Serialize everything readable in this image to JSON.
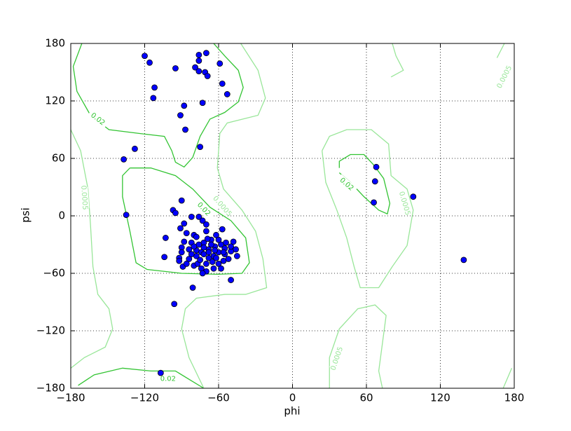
{
  "chart_data": {
    "type": "scatter",
    "xlabel": "phi",
    "ylabel": "psi",
    "xlim": [
      -180,
      180
    ],
    "ylim": [
      -180,
      180
    ],
    "xticks": [
      {
        "value": -180,
        "label": "−180"
      },
      {
        "value": -120,
        "label": "−120"
      },
      {
        "value": -60,
        "label": "−60"
      },
      0,
      60,
      120,
      180
    ],
    "yticks": [
      {
        "value": -180,
        "label": "−180"
      },
      {
        "value": -120,
        "label": "−120"
      },
      {
        "value": -60,
        "label": "−60"
      },
      0,
      60,
      120,
      180
    ],
    "grid": true,
    "series": [
      {
        "color": "#0000ff",
        "x": [
          -120,
          -116,
          -112,
          -113,
          -95,
          -76,
          -70,
          -76,
          -79,
          -76,
          -71,
          -69,
          -59,
          -57,
          -53,
          -73,
          -88,
          -91,
          -87,
          -75,
          -128,
          -137,
          -135,
          -97,
          -95,
          -90,
          68,
          67,
          66,
          98,
          139,
          -103,
          -104,
          -92,
          -92,
          -89,
          -81,
          -96,
          -107,
          -50,
          -82,
          -76,
          -73,
          -70,
          -88,
          -91,
          -86,
          -80,
          -78,
          -70,
          -57,
          -62,
          -66,
          -72,
          -76,
          -82,
          -88,
          -90,
          -84,
          -78,
          -74,
          -68,
          -63,
          -58,
          -54,
          -48,
          -46,
          -50,
          -55,
          -60,
          -64,
          -68,
          -72,
          -78,
          -84,
          -90,
          -86,
          -80,
          -74,
          -70,
          -65,
          -60,
          -56,
          -52,
          -45,
          -58,
          -64,
          -70,
          -77,
          -66,
          -60,
          -55,
          -62,
          -72,
          -80,
          -68,
          -56,
          -50,
          -75,
          -82,
          -63,
          -69,
          -73
        ],
        "y": [
          167,
          160,
          134,
          123,
          154,
          168,
          170,
          162,
          155,
          151,
          150,
          146,
          159,
          138,
          127,
          118,
          115,
          105,
          90,
          72,
          70,
          59,
          1,
          6,
          3,
          16,
          51,
          36,
          14,
          20,
          -46,
          -23,
          -43,
          -44,
          -47,
          -53,
          -75,
          -92,
          -164,
          -67,
          -1,
          -1,
          -5,
          -9,
          -8,
          -13,
          -18,
          -20,
          -22,
          -16,
          -14,
          -20,
          -25,
          -28,
          -30,
          -28,
          -27,
          -33,
          -35,
          -36,
          -38,
          -35,
          -32,
          -30,
          -28,
          -27,
          -35,
          -37,
          -40,
          -38,
          -42,
          -44,
          -40,
          -42,
          -45,
          -38,
          -50,
          -52,
          -55,
          -50,
          -48,
          -50,
          -47,
          -45,
          -42,
          -55,
          -55,
          -58,
          -50,
          -30,
          -25,
          -34,
          -44,
          -33,
          -32,
          -38,
          -38,
          -32,
          -46,
          -40,
          -36,
          -24,
          -60
        ]
      }
    ],
    "contours": [
      {
        "color": "#33c433",
        "x": [
          -171,
          -178,
          -175,
          -164,
          -149,
          -124,
          -104,
          -98,
          -95,
          -88,
          -81,
          -75,
          -67,
          -55,
          -44,
          -40,
          -44,
          -55,
          -64
        ],
        "y": [
          180,
          156,
          130,
          105,
          90,
          86,
          83,
          68,
          56,
          51,
          61,
          83,
          101,
          108,
          119,
          134,
          152,
          167,
          180
        ],
        "labels": [
          {
            "text": "0.02",
            "x": -158,
            "y": 101
          }
        ]
      },
      {
        "color": "#33c433",
        "x": [
          -132,
          -138,
          -138,
          -132,
          -127,
          -118,
          -90,
          -61,
          -41,
          -35,
          -38,
          -50,
          -67,
          -81,
          -95,
          -115,
          -132
        ],
        "y": [
          50,
          42,
          20,
          -16,
          -49,
          -56,
          -60,
          -61,
          -60,
          -49,
          -23,
          -5,
          9,
          28,
          42,
          50,
          50
        ],
        "labels": [
          {
            "text": "0.02",
            "x": -72,
            "y": 7
          }
        ]
      },
      {
        "color": "#33c433",
        "x": [
          38,
          38,
          47,
          58,
          66,
          74,
          79,
          77,
          70,
          58,
          47,
          38
        ],
        "y": [
          50,
          57,
          64,
          64,
          53,
          39,
          13,
          2,
          6,
          20,
          35,
          45
        ],
        "labels": [
          {
            "text": "0.02",
            "x": 44,
            "y": 33
          }
        ]
      },
      {
        "color": "#33c433",
        "x": [
          -174,
          -161,
          -138,
          -115,
          -95,
          -81,
          -72
        ],
        "y": [
          -177,
          -166,
          -159,
          -162,
          -162,
          -173,
          -180
        ],
        "labels": [
          {
            "text": "0.02",
            "x": -101,
            "y": -170
          }
        ]
      },
      {
        "color": "#99e699",
        "x": [
          -180,
          -172,
          -166,
          -164,
          -162,
          -158,
          -149,
          -146,
          -152,
          -169,
          -180
        ],
        "y": [
          90,
          68,
          28,
          -9,
          -53,
          -82,
          -97,
          -118,
          -137,
          -148,
          -159
        ],
        "labels": [
          {
            "text": "0.0005",
            "x": -169,
            "y": 19
          }
        ]
      },
      {
        "color": "#99e699",
        "x": [
          -42,
          -28,
          -22,
          -28,
          -53,
          -59,
          -61,
          -56,
          -41,
          -30,
          -24,
          -21,
          -38,
          -55,
          -78,
          -87,
          -90,
          -84,
          -72
        ],
        "y": [
          180,
          152,
          123,
          105,
          97,
          86,
          50,
          28,
          6,
          -16,
          -45,
          -75,
          -82,
          -82,
          -86,
          -97,
          -118,
          -148,
          -180
        ],
        "labels": [
          {
            "text": "0.0005",
            "x": -57,
            "y": 10
          }
        ]
      },
      {
        "color": "#99e699",
        "x": [
          24,
          30,
          44,
          64,
          78,
          80,
          93,
          98,
          93,
          81,
          70,
          55,
          50,
          44,
          36,
          27,
          24
        ],
        "y": [
          68,
          83,
          90,
          90,
          75,
          42,
          28,
          6,
          -31,
          -53,
          -75,
          -75,
          -53,
          -23,
          6,
          35,
          68
        ],
        "labels": [
          {
            "text": "0.0005",
            "x": 91,
            "y": 13
          }
        ]
      },
      {
        "color": "#99e699",
        "x": [
          30,
          30,
          38,
          53,
          67,
          76,
          73,
          70,
          73
        ],
        "y": [
          -180,
          -148,
          -118,
          -97,
          -93,
          -104,
          -133,
          -162,
          -180
        ],
        "labels": [
          {
            "text": "0.0005",
            "x": 36,
            "y": -149
          }
        ]
      },
      {
        "color": "#99e699",
        "x": [
          81,
          84,
          90,
          80
        ],
        "y": [
          180,
          167,
          152,
          145
        ],
        "labels": []
      },
      {
        "color": "#99e699",
        "x": [
          166,
          172
        ],
        "y": [
          165,
          180
        ],
        "labels": [
          {
            "text": "0.0005",
            "x": 172,
            "y": 145
          }
        ]
      },
      {
        "color": "#99e699",
        "x": [
          171,
          178
        ],
        "y": [
          -180,
          -159
        ],
        "labels": []
      }
    ]
  }
}
